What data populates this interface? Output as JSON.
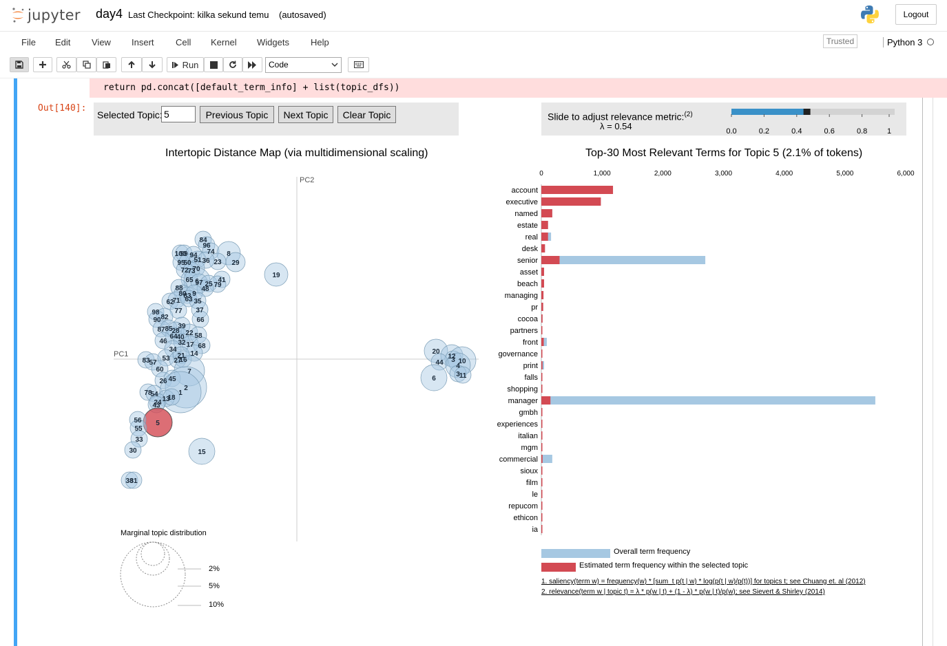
{
  "header": {
    "brand": "jupyter",
    "notebook_name": "day4",
    "checkpoint": "Last Checkpoint: kilka sekund temu",
    "autosave": "(autosaved)",
    "logout": "Logout"
  },
  "menu": [
    "File",
    "Edit",
    "View",
    "Insert",
    "Cell",
    "Kernel",
    "Widgets",
    "Help"
  ],
  "status": {
    "trusted": "Trusted",
    "kernel": "Python 3"
  },
  "toolbar": {
    "run_label": "Run",
    "cell_type": "Code"
  },
  "cell": {
    "code_line": "return pd.concat([default_term_info] + list(topic_dfs))",
    "out_prompt": "Out[140]:"
  },
  "controls": {
    "selected_topic_label": "Selected Topic:",
    "selected_topic_value": "5",
    "prev": "Previous Topic",
    "next": "Next Topic",
    "clear": "Clear Topic"
  },
  "slider": {
    "label": "Slide to adjust relevance metric:",
    "footnote": "(2)",
    "lambda_text": "λ = 0.54",
    "value": 0.54,
    "ticks": [
      "0.0",
      "0.2",
      "0.4",
      "0.6",
      "0.8",
      "1"
    ]
  },
  "map": {
    "title": "Intertopic Distance Map (via multidimensional scaling)",
    "pc1": "PC1",
    "pc2": "PC2",
    "marginal_title": "Marginal topic distribution",
    "marginal_labels": [
      "2%",
      "5%",
      "10%"
    ],
    "selected": "5",
    "topics": [
      [
        "84",
        295,
        348
      ],
      [
        "96",
        300,
        356
      ],
      [
        "74",
        306,
        365
      ],
      [
        "8",
        332,
        368
      ],
      [
        "100",
        262,
        368
      ],
      [
        "99",
        267,
        368
      ],
      [
        "94",
        281,
        370
      ],
      [
        "23",
        316,
        380
      ],
      [
        "29",
        342,
        381
      ],
      [
        "95",
        263,
        381
      ],
      [
        "50",
        272,
        381
      ],
      [
        "51",
        287,
        377
      ],
      [
        "36",
        299,
        378
      ],
      [
        "70",
        285,
        390
      ],
      [
        "72",
        268,
        392
      ],
      [
        "73",
        278,
        393
      ],
      [
        "19",
        401,
        399
      ],
      [
        "41",
        322,
        406
      ],
      [
        "65",
        275,
        406
      ],
      [
        "6",
        286,
        408
      ],
      [
        "97",
        289,
        410
      ],
      [
        "25",
        303,
        412
      ],
      [
        "79",
        316,
        413
      ],
      [
        "88",
        260,
        418
      ],
      [
        "48",
        298,
        419
      ],
      [
        "80",
        265,
        426
      ],
      [
        "83",
        272,
        429
      ],
      [
        "9",
        282,
        426
      ],
      [
        "62",
        247,
        438
      ],
      [
        "71",
        256,
        436
      ],
      [
        "63",
        274,
        434
      ],
      [
        "35",
        287,
        437
      ],
      [
        "77",
        259,
        451
      ],
      [
        "37",
        290,
        450
      ],
      [
        "98",
        226,
        453
      ],
      [
        "82",
        239,
        460
      ],
      [
        "90",
        228,
        464
      ],
      [
        "66",
        291,
        464
      ],
      [
        "39",
        264,
        473
      ],
      [
        "87",
        234,
        478
      ],
      [
        "85",
        245,
        477
      ],
      [
        "28",
        255,
        480
      ],
      [
        "22",
        275,
        483
      ],
      [
        "64",
        252,
        488
      ],
      [
        "40",
        262,
        489
      ],
      [
        "58",
        288,
        487
      ],
      [
        "46",
        237,
        495
      ],
      [
        "32",
        264,
        497
      ],
      [
        "17",
        276,
        500
      ],
      [
        "68",
        293,
        502
      ],
      [
        "34",
        251,
        507
      ],
      [
        "14",
        282,
        513
      ],
      [
        "83",
        212,
        523
      ],
      [
        "57",
        222,
        526
      ],
      [
        "53",
        241,
        520
      ],
      [
        "27",
        258,
        523
      ],
      [
        "16",
        266,
        522
      ],
      [
        "21",
        263,
        516
      ],
      [
        "60",
        232,
        536
      ],
      [
        "7",
        275,
        539
      ],
      [
        "26",
        237,
        553
      ],
      [
        "45",
        250,
        550
      ],
      [
        "2",
        270,
        563
      ],
      [
        "78",
        215,
        570
      ],
      [
        "54",
        224,
        572
      ],
      [
        "1",
        262,
        570
      ],
      [
        "13",
        241,
        579
      ],
      [
        "18",
        249,
        577
      ],
      [
        "24",
        229,
        584
      ],
      [
        "43",
        227,
        588
      ],
      [
        "5",
        229,
        614
      ],
      [
        "56",
        200,
        610
      ],
      [
        "55",
        201,
        622
      ],
      [
        "33",
        202,
        638
      ],
      [
        "30",
        193,
        654
      ],
      [
        "15",
        293,
        656
      ],
      [
        "38",
        188,
        698
      ],
      [
        "31",
        194,
        698
      ],
      [
        "20",
        633,
        510
      ],
      [
        "12",
        656,
        517
      ],
      [
        "3",
        658,
        522
      ],
      [
        "44",
        638,
        526
      ],
      [
        "10",
        671,
        524
      ],
      [
        "4",
        665,
        531
      ],
      [
        "6",
        630,
        549
      ],
      [
        "3",
        665,
        543
      ],
      [
        "11",
        672,
        545
      ]
    ]
  },
  "bars": {
    "title": "Top-30 Most Relevant Terms for Topic 5 (2.1% of tokens)",
    "axis_ticks": [
      "0",
      "1,000",
      "2,000",
      "3,000",
      "4,000",
      "5,000",
      "6,000"
    ],
    "legend_overall": "Overall term frequency",
    "legend_estimated": "Estimated term frequency within the selected topic",
    "footnote1": "1. saliency(term w) = frequency(w) * [sum_t p(t | w) * log(p(t | w)/p(t))] for topics t; see Chuang et. al (2012)",
    "footnote2": "2. relevance(term w | topic t) = λ * p(w | t) + (1 - λ) * p(w | t)/p(w); see Sievert & Shirley (2014)",
    "colors": {
      "overall": "#a6c8e2",
      "estimated": "#d34a53"
    },
    "terms": [
      "account",
      "executive",
      "named",
      "estate",
      "real",
      "desk",
      "senior",
      "asset",
      "beach",
      "managing",
      "pr",
      "cocoa",
      "partners",
      "front",
      "governance",
      "print",
      "falls",
      "shopping",
      "manager",
      "gmbh",
      "experiences",
      "italian",
      "mgm",
      "commercial",
      "sioux",
      "film",
      "le",
      "repucom",
      "ethicon",
      "ia"
    ],
    "overall": [
      1180,
      980,
      180,
      110,
      160,
      60,
      2700,
      45,
      45,
      35,
      30,
      20,
      10,
      90,
      10,
      45,
      10,
      10,
      5500,
      10,
      10,
      10,
      10,
      180,
      10,
      10,
      10,
      10,
      10,
      10
    ],
    "estimated": [
      1180,
      980,
      180,
      110,
      110,
      60,
      300,
      45,
      45,
      35,
      30,
      20,
      10,
      40,
      10,
      20,
      10,
      10,
      150,
      10,
      10,
      10,
      10,
      20,
      10,
      10,
      10,
      10,
      10,
      10
    ]
  }
}
